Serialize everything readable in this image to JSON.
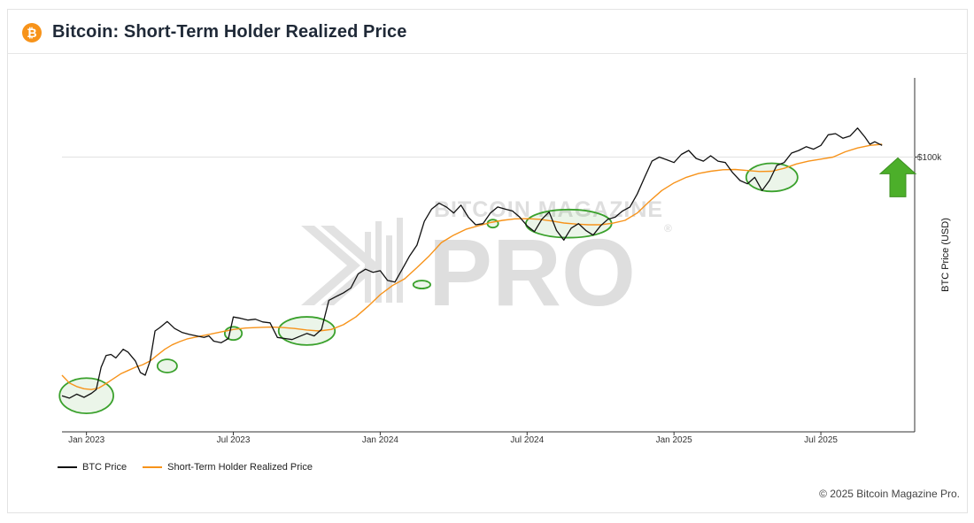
{
  "header": {
    "logo_glyph": "₿",
    "title": "Bitcoin: Short-Term Holder Realized Price"
  },
  "watermark": {
    "top": "BITCOIN MAGAZINE",
    "main": "PRO",
    "registered": "®"
  },
  "legend": {
    "btc_label": "BTC Price",
    "sth_label": "Short-Term Holder Realized Price"
  },
  "footer": {
    "copyright": "© 2025 Bitcoin Magazine Pro."
  },
  "colors": {
    "btc": "#111111",
    "sth": "#f7931a",
    "highlight": "#3aa12c",
    "arrow": "#4caf2a"
  },
  "chart_data": {
    "type": "line",
    "title": "Bitcoin: Short-Term Holder Realized Price",
    "xlabel": "",
    "ylabel": "BTC Price (USD)",
    "y_scale": "log",
    "ylim": [
      13000,
      180000
    ],
    "xlim": [
      0,
      34
    ],
    "x_unit": "months since Dec 2022",
    "x_ticks": [
      {
        "x": 1,
        "label": "Jan 2023"
      },
      {
        "x": 7,
        "label": "Jul 2023"
      },
      {
        "x": 13,
        "label": "Jan 2024"
      },
      {
        "x": 19,
        "label": "Jul 2024"
      },
      {
        "x": 25,
        "label": "Jan 2025"
      },
      {
        "x": 31,
        "label": "Jul 2025"
      }
    ],
    "y_ticks": [
      {
        "y": 100000,
        "label": "$100k"
      }
    ],
    "series": [
      {
        "name": "BTC Price",
        "points": [
          [
            0,
            17000
          ],
          [
            0.3,
            16700
          ],
          [
            0.6,
            17200
          ],
          [
            0.9,
            16800
          ],
          [
            1.2,
            17300
          ],
          [
            1.4,
            17800
          ],
          [
            1.6,
            21000
          ],
          [
            1.8,
            22900
          ],
          [
            2.0,
            23100
          ],
          [
            2.2,
            22500
          ],
          [
            2.5,
            24000
          ],
          [
            2.7,
            23500
          ],
          [
            3.0,
            22000
          ],
          [
            3.2,
            20200
          ],
          [
            3.4,
            19800
          ],
          [
            3.6,
            22000
          ],
          [
            3.8,
            27500
          ],
          [
            4.0,
            28200
          ],
          [
            4.3,
            29500
          ],
          [
            4.6,
            28000
          ],
          [
            4.9,
            27200
          ],
          [
            5.2,
            26800
          ],
          [
            5.5,
            26500
          ],
          [
            5.8,
            26200
          ],
          [
            6.0,
            26500
          ],
          [
            6.2,
            25500
          ],
          [
            6.5,
            25200
          ],
          [
            6.8,
            26000
          ],
          [
            7.0,
            30500
          ],
          [
            7.3,
            30200
          ],
          [
            7.6,
            29800
          ],
          [
            7.9,
            30000
          ],
          [
            8.2,
            29400
          ],
          [
            8.5,
            29200
          ],
          [
            8.8,
            26200
          ],
          [
            9.1,
            26000
          ],
          [
            9.4,
            25800
          ],
          [
            9.7,
            26400
          ],
          [
            10.0,
            27000
          ],
          [
            10.3,
            26500
          ],
          [
            10.6,
            27800
          ],
          [
            10.9,
            34500
          ],
          [
            11.2,
            35500
          ],
          [
            11.5,
            36500
          ],
          [
            11.8,
            37800
          ],
          [
            12.1,
            42000
          ],
          [
            12.4,
            43500
          ],
          [
            12.7,
            42500
          ],
          [
            13.0,
            43000
          ],
          [
            13.3,
            40000
          ],
          [
            13.6,
            39500
          ],
          [
            13.9,
            43500
          ],
          [
            14.2,
            48000
          ],
          [
            14.5,
            52000
          ],
          [
            14.8,
            62000
          ],
          [
            15.1,
            68000
          ],
          [
            15.4,
            71000
          ],
          [
            15.7,
            69000
          ],
          [
            16.0,
            66000
          ],
          [
            16.3,
            70000
          ],
          [
            16.6,
            64000
          ],
          [
            16.9,
            60500
          ],
          [
            17.2,
            61000
          ],
          [
            17.5,
            66000
          ],
          [
            17.8,
            69000
          ],
          [
            18.1,
            68000
          ],
          [
            18.4,
            67000
          ],
          [
            18.7,
            64000
          ],
          [
            19.0,
            60000
          ],
          [
            19.3,
            57500
          ],
          [
            19.6,
            63000
          ],
          [
            19.9,
            66500
          ],
          [
            20.2,
            58000
          ],
          [
            20.5,
            54000
          ],
          [
            20.8,
            59000
          ],
          [
            21.1,
            61000
          ],
          [
            21.4,
            58000
          ],
          [
            21.7,
            56000
          ],
          [
            22.0,
            60000
          ],
          [
            22.3,
            63000
          ],
          [
            22.6,
            64000
          ],
          [
            22.9,
            67000
          ],
          [
            23.2,
            69000
          ],
          [
            23.5,
            76000
          ],
          [
            23.8,
            86000
          ],
          [
            24.1,
            97000
          ],
          [
            24.4,
            100000
          ],
          [
            24.7,
            98000
          ],
          [
            25.0,
            96000
          ],
          [
            25.3,
            102000
          ],
          [
            25.6,
            105000
          ],
          [
            25.9,
            99000
          ],
          [
            26.2,
            97000
          ],
          [
            26.5,
            101000
          ],
          [
            26.8,
            97000
          ],
          [
            27.1,
            96000
          ],
          [
            27.4,
            89000
          ],
          [
            27.7,
            84000
          ],
          [
            28.0,
            82000
          ],
          [
            28.3,
            86000
          ],
          [
            28.6,
            78000
          ],
          [
            28.9,
            84000
          ],
          [
            29.2,
            94000
          ],
          [
            29.5,
            96000
          ],
          [
            29.8,
            103000
          ],
          [
            30.1,
            105000
          ],
          [
            30.4,
            108000
          ],
          [
            30.7,
            106000
          ],
          [
            31.0,
            109000
          ],
          [
            31.3,
            118000
          ],
          [
            31.6,
            119000
          ],
          [
            31.9,
            115000
          ],
          [
            32.2,
            117000
          ],
          [
            32.5,
            124000
          ],
          [
            32.8,
            116000
          ],
          [
            33.0,
            110000
          ],
          [
            33.2,
            112000
          ],
          [
            33.5,
            109000
          ]
        ]
      },
      {
        "name": "Short-Term Holder Realized Price",
        "points": [
          [
            0,
            19800
          ],
          [
            0.3,
            18700
          ],
          [
            0.6,
            18200
          ],
          [
            0.9,
            17900
          ],
          [
            1.2,
            17800
          ],
          [
            1.5,
            18000
          ],
          [
            1.8,
            18600
          ],
          [
            2.1,
            19300
          ],
          [
            2.4,
            20000
          ],
          [
            2.7,
            20500
          ],
          [
            3.0,
            21000
          ],
          [
            3.3,
            21400
          ],
          [
            3.6,
            22000
          ],
          [
            3.9,
            23000
          ],
          [
            4.2,
            24000
          ],
          [
            4.5,
            24800
          ],
          [
            4.8,
            25400
          ],
          [
            5.1,
            25900
          ],
          [
            5.4,
            26200
          ],
          [
            5.7,
            26500
          ],
          [
            6.0,
            26800
          ],
          [
            6.5,
            27300
          ],
          [
            7.0,
            27800
          ],
          [
            7.5,
            28100
          ],
          [
            8.0,
            28200
          ],
          [
            8.5,
            28300
          ],
          [
            9.0,
            28200
          ],
          [
            9.5,
            28000
          ],
          [
            10.0,
            27700
          ],
          [
            10.5,
            27500
          ],
          [
            11.0,
            27800
          ],
          [
            11.5,
            28800
          ],
          [
            12.0,
            30500
          ],
          [
            12.5,
            33000
          ],
          [
            13.0,
            36000
          ],
          [
            13.5,
            38500
          ],
          [
            14.0,
            40500
          ],
          [
            14.5,
            44000
          ],
          [
            15.0,
            48000
          ],
          [
            15.5,
            53000
          ],
          [
            16.0,
            56000
          ],
          [
            16.5,
            58500
          ],
          [
            17.0,
            60000
          ],
          [
            17.5,
            61500
          ],
          [
            18.0,
            62500
          ],
          [
            18.5,
            63200
          ],
          [
            19.0,
            63300
          ],
          [
            19.5,
            63000
          ],
          [
            20.0,
            62200
          ],
          [
            20.5,
            61300
          ],
          [
            21.0,
            60800
          ],
          [
            21.5,
            60500
          ],
          [
            22.0,
            60500
          ],
          [
            22.5,
            61200
          ],
          [
            23.0,
            62500
          ],
          [
            23.5,
            66000
          ],
          [
            24.0,
            72000
          ],
          [
            24.5,
            78000
          ],
          [
            25.0,
            82500
          ],
          [
            25.5,
            86000
          ],
          [
            26.0,
            88500
          ],
          [
            26.5,
            90000
          ],
          [
            27.0,
            91000
          ],
          [
            27.5,
            91200
          ],
          [
            28.0,
            90500
          ],
          [
            28.5,
            89800
          ],
          [
            29.0,
            90000
          ],
          [
            29.5,
            92000
          ],
          [
            30.0,
            95000
          ],
          [
            30.5,
            97000
          ],
          [
            31.0,
            98500
          ],
          [
            31.5,
            100000
          ],
          [
            32.0,
            104000
          ],
          [
            32.5,
            107000
          ],
          [
            33.0,
            109000
          ],
          [
            33.5,
            110000
          ]
        ]
      }
    ],
    "highlights": [
      {
        "x": 1.0,
        "y": 17000,
        "rx_months": 1.1,
        "spread": 1.14
      },
      {
        "x": 4.3,
        "y": 21200,
        "rx_months": 0.4,
        "spread": 1.05
      },
      {
        "x": 7.0,
        "y": 27000,
        "rx_months": 0.35,
        "spread": 1.05
      },
      {
        "x": 10.0,
        "y": 27500,
        "rx_months": 1.15,
        "spread": 1.11
      },
      {
        "x": 14.7,
        "y": 38800,
        "rx_months": 0.35,
        "spread": 1.03
      },
      {
        "x": 17.6,
        "y": 61000,
        "rx_months": 0.22,
        "spread": 1.03
      },
      {
        "x": 20.7,
        "y": 61000,
        "rx_months": 1.75,
        "spread": 1.11
      },
      {
        "x": 29.0,
        "y": 86000,
        "rx_months": 1.05,
        "spread": 1.11
      }
    ],
    "arrow": {
      "x": 34.0,
      "y": 86000,
      "direction": "up"
    }
  }
}
